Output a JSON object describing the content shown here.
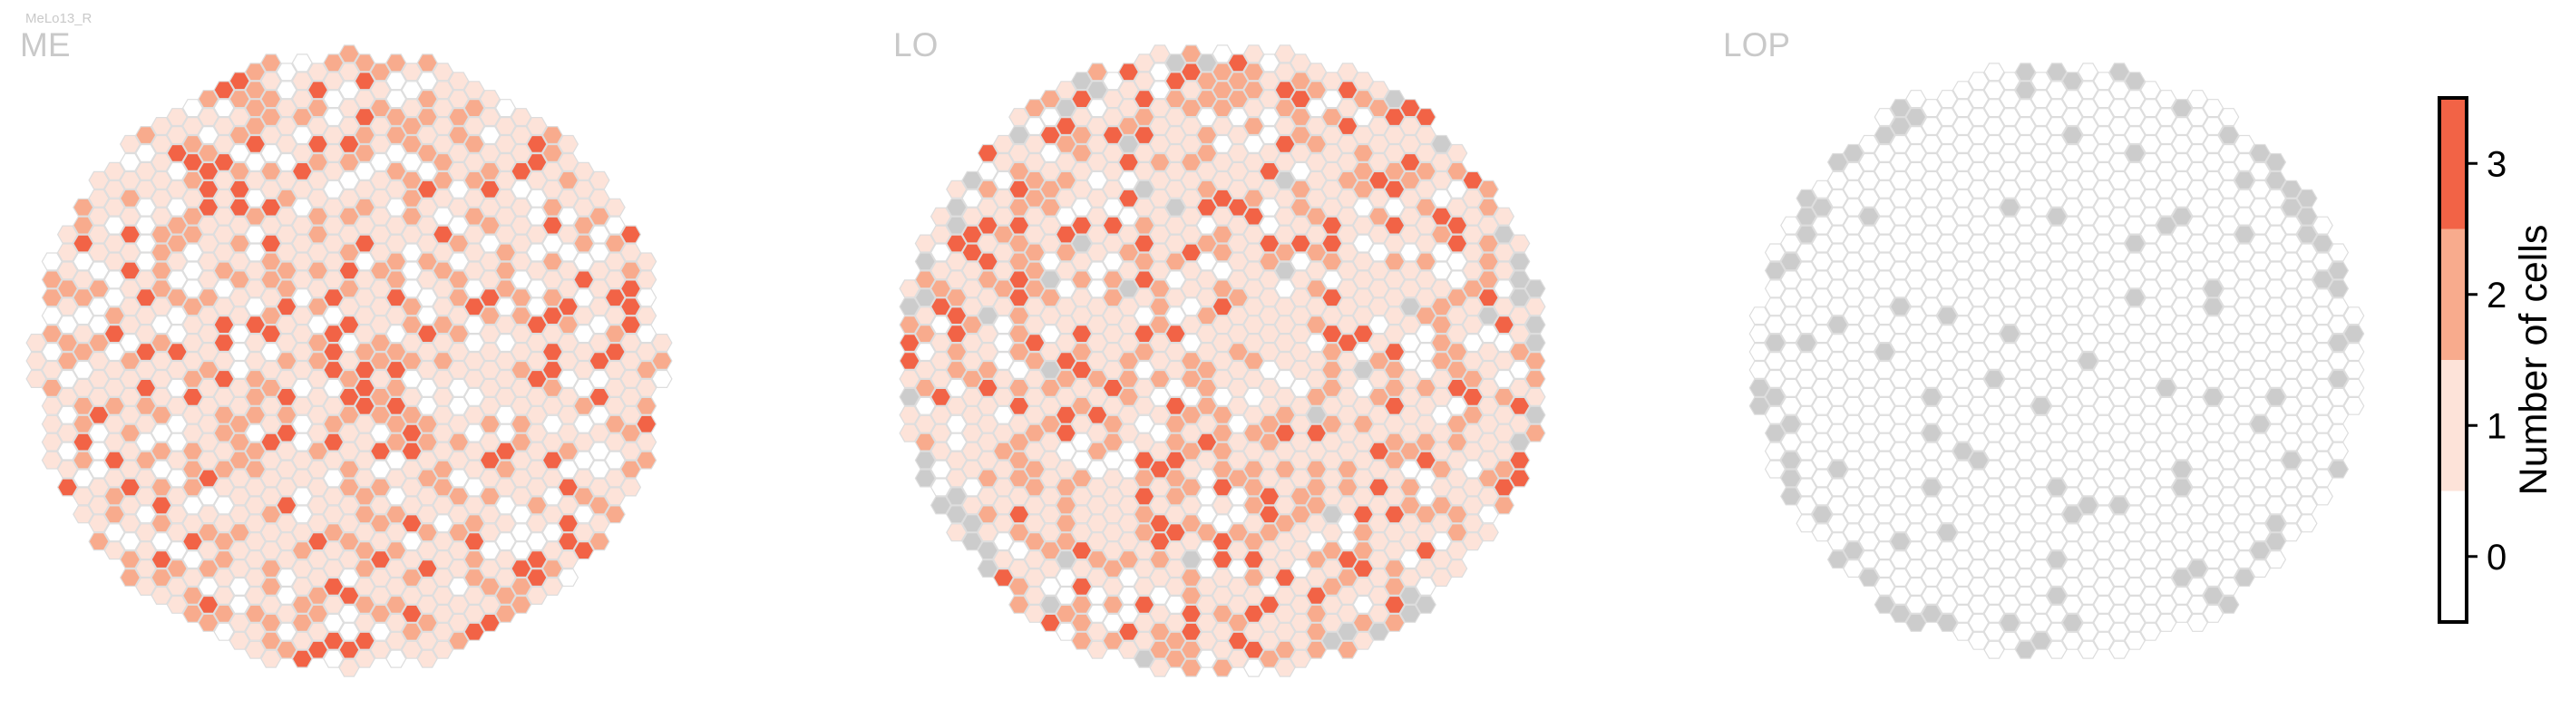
{
  "figure_title": "MeLo13_R",
  "colors": {
    "zero": "#ffffff",
    "one": "#fde3d9",
    "two": "#f8ab8d",
    "three": "#f26346",
    "missing": "#cccccc",
    "hex_stroke": "#dddddd",
    "panel_title": "#c9c9c9"
  },
  "chart_data": [
    {
      "type": "heatmap",
      "title": "ME",
      "layout": "hexagonal columns",
      "value_levels": [
        0,
        1,
        2,
        3
      ],
      "approx_column_count": 33,
      "approx_share": {
        "0": 0.2,
        "1": 0.45,
        "2": 0.25,
        "3": 0.1,
        "missing": 0.0
      }
    },
    {
      "type": "heatmap",
      "title": "LO",
      "layout": "hexagonal columns",
      "value_levels": [
        0,
        1,
        2,
        3
      ],
      "approx_column_count": 33,
      "approx_share": {
        "0": 0.12,
        "1": 0.48,
        "2": 0.26,
        "3": 0.11,
        "missing": 0.03
      }
    },
    {
      "type": "heatmap",
      "title": "LOP",
      "layout": "hexagonal columns",
      "value_levels": [
        0,
        1,
        2,
        3
      ],
      "approx_column_count": 33,
      "approx_share": {
        "0": 0.93,
        "1": 0.0,
        "2": 0.0,
        "3": 0.0,
        "missing": 0.07
      }
    }
  ],
  "colorbar": {
    "label": "Number of cells",
    "ticks": [
      "0",
      "1",
      "2",
      "3"
    ],
    "range": [
      -0.5,
      3.5
    ]
  }
}
